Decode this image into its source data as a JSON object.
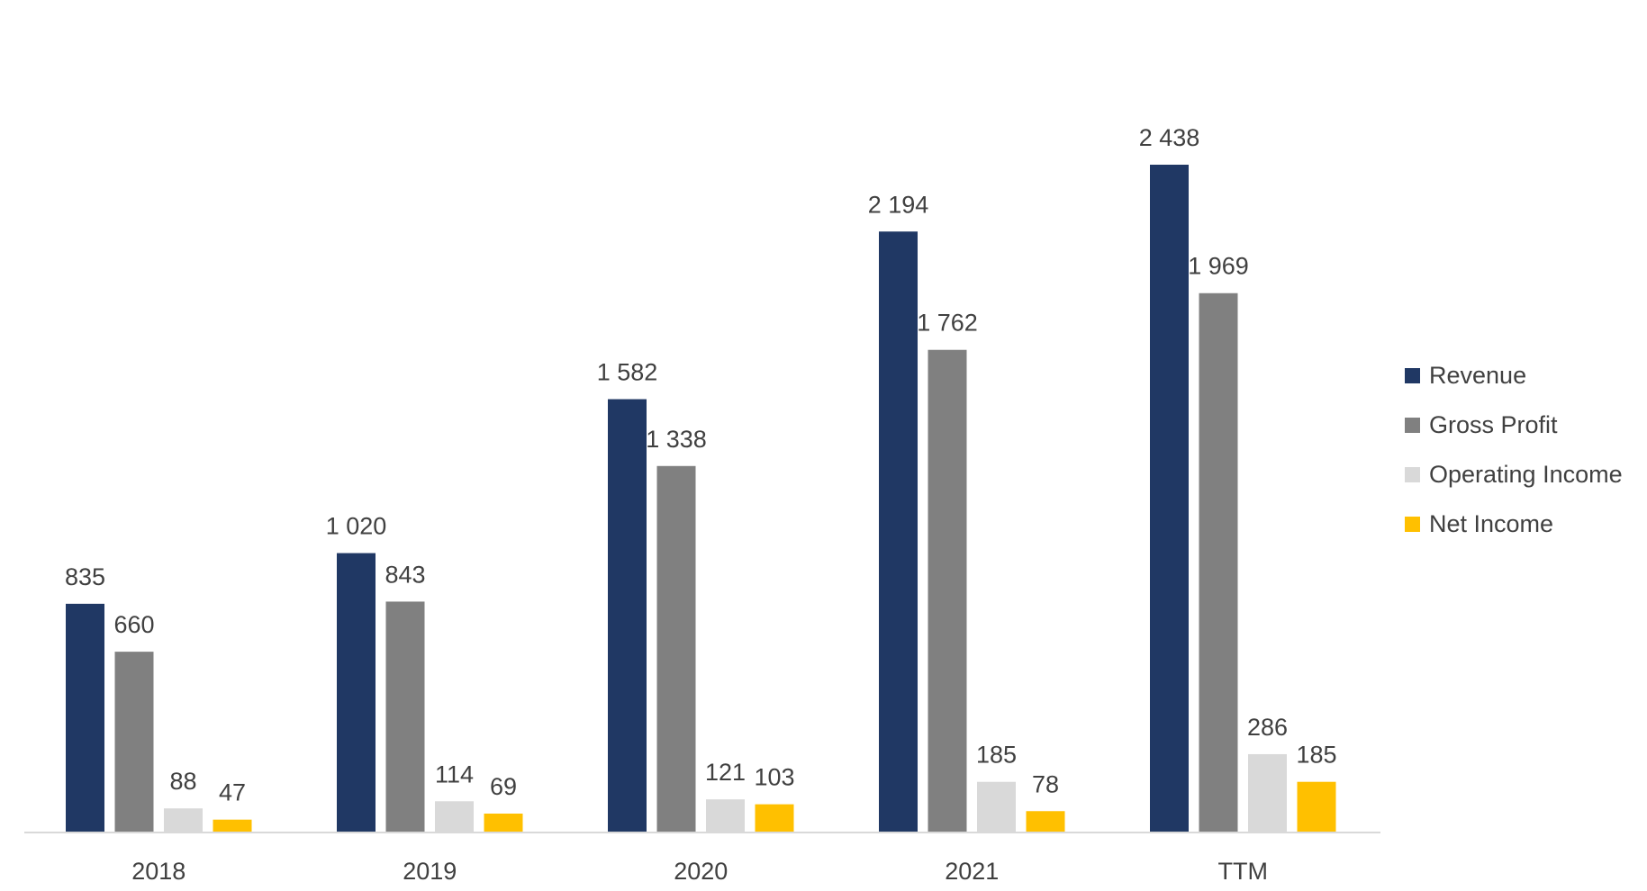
{
  "chart_data": {
    "type": "bar",
    "title": "",
    "xlabel": "",
    "ylabel": "",
    "categories": [
      "2018",
      "2019",
      "2020",
      "2021",
      "TTM"
    ],
    "series": [
      {
        "name": "Revenue",
        "color": "#203864",
        "values": [
          835,
          1020,
          1582,
          2194,
          2438
        ],
        "labels": [
          "835",
          "1 020",
          "1 582",
          "2 194",
          "2 438"
        ]
      },
      {
        "name": "Gross Profit",
        "color": "#808080",
        "values": [
          660,
          843,
          1338,
          1762,
          1969
        ],
        "labels": [
          "660",
          "843",
          "1 338",
          "1 762",
          "1 969"
        ]
      },
      {
        "name": "Operating Income",
        "color": "#d9d9d9",
        "values": [
          88,
          114,
          121,
          185,
          286
        ],
        "labels": [
          "88",
          "114",
          "121",
          "185",
          "286"
        ]
      },
      {
        "name": "Net Income",
        "color": "#ffc000",
        "values": [
          47,
          69,
          103,
          78,
          185
        ],
        "labels": [
          "47",
          "69",
          "103",
          "78",
          "185"
        ]
      }
    ],
    "ylim": [
      0,
      2438
    ],
    "grid": false,
    "legend_position": "right"
  }
}
